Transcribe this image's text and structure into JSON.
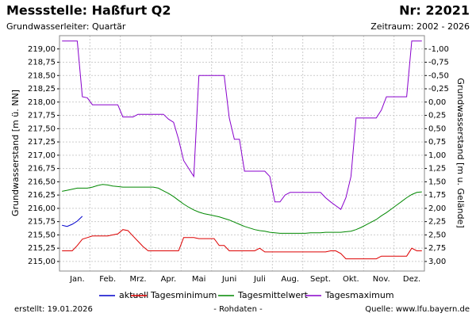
{
  "chart_data": {
    "type": "line",
    "title": "Messstelle: Haßfurt Q2",
    "number": "Nr: 22021",
    "subtitle": "Grundwasserleiter: Quartär",
    "period": "Zeitraum: 2002 - 2026",
    "ylabel": "Grundwasserstand [m ü. NN]",
    "y2label": "Grundwasserstand [m u. Gelände]",
    "footer_left": "erstellt:  19.01.2026",
    "footer_center": "- Rohdaten -",
    "footer_right": "Quelle: www.lfu.bayern.de",
    "grid": true,
    "categories": [
      null,
      null,
      null,
      "Jan.",
      null,
      null,
      null,
      null,
      null,
      "Feb.",
      null,
      null,
      null,
      null,
      null,
      "Mrz.",
      null,
      null,
      null,
      null,
      null,
      "Apr.",
      null,
      null,
      null,
      null,
      null,
      "Mai",
      null,
      null,
      null,
      null,
      null,
      "Juni",
      null,
      null,
      null,
      null,
      null,
      "Juli",
      null,
      null,
      null,
      null,
      null,
      "Aug.",
      null,
      null,
      null,
      null,
      null,
      "Sept.",
      null,
      null,
      null,
      null,
      null,
      "Okt.",
      null,
      null,
      null,
      null,
      null,
      "Nov.",
      null,
      null,
      null,
      null,
      null,
      "Dez.",
      null,
      null
    ],
    "ylim": [
      214.82,
      219.25
    ],
    "yticks": [
      {
        "value": 215,
        "label": "215,00"
      },
      {
        "value": 215.25,
        "label": "215,25"
      },
      {
        "value": 215.5,
        "label": "215,50"
      },
      {
        "value": 215.75,
        "label": "215,75"
      },
      {
        "value": 216,
        "label": "216,00"
      },
      {
        "value": 216.25,
        "label": "216,25"
      },
      {
        "value": 216.5,
        "label": "216,50"
      },
      {
        "value": 216.75,
        "label": "216,75"
      },
      {
        "value": 217,
        "label": "217,00"
      },
      {
        "value": 217.25,
        "label": "217,25"
      },
      {
        "value": 217.5,
        "label": "217,50"
      },
      {
        "value": 217.75,
        "label": "217,75"
      },
      {
        "value": 218,
        "label": "218,00"
      },
      {
        "value": 218.25,
        "label": "218,25"
      },
      {
        "value": 218.5,
        "label": "218,50"
      },
      {
        "value": 218.75,
        "label": "218,75"
      },
      {
        "value": 219,
        "label": "219,00"
      }
    ],
    "y2lim": [
      3.18,
      -1.25
    ],
    "y2ticks": [
      {
        "value": -1,
        "label": "-1,00"
      },
      {
        "value": -0.75,
        "label": "-0,75"
      },
      {
        "value": -0.5,
        "label": "-0,50"
      },
      {
        "value": -0.25,
        "label": "-0,25"
      },
      {
        "value": 0,
        "label": "0,00"
      },
      {
        "value": 0.25,
        "label": "0,25"
      },
      {
        "value": 0.5,
        "label": "0,50"
      },
      {
        "value": 0.75,
        "label": "0,75"
      },
      {
        "value": 1,
        "label": "1,00"
      },
      {
        "value": 1.25,
        "label": "1,25"
      },
      {
        "value": 1.5,
        "label": "1,50"
      },
      {
        "value": 1.75,
        "label": "1,75"
      },
      {
        "value": 2,
        "label": "2,00"
      },
      {
        "value": 2.25,
        "label": "2,25"
      },
      {
        "value": 2.5,
        "label": "2,50"
      },
      {
        "value": 2.75,
        "label": "2,75"
      },
      {
        "value": 3,
        "label": "3,00"
      }
    ],
    "series": [
      {
        "name": "aktuell",
        "color": "#0000cc",
        "values": [
          215.68,
          215.66,
          215.7,
          215.76,
          215.85,
          null,
          null,
          null,
          null,
          null,
          null,
          null,
          null,
          null,
          null,
          null,
          null,
          null,
          null,
          null,
          null,
          null,
          null,
          null,
          null,
          null,
          null,
          null,
          null,
          null,
          null,
          null,
          null,
          null,
          null,
          null,
          null,
          null,
          null,
          null,
          null,
          null,
          null,
          null,
          null,
          null,
          null,
          null,
          null,
          null,
          null,
          null,
          null,
          null,
          null,
          null,
          null,
          null,
          null,
          null,
          null,
          null,
          null,
          null,
          null,
          null,
          null,
          null,
          null,
          null,
          null,
          null
        ]
      },
      {
        "name": "Tagesminimum",
        "color": "#dd0000",
        "values": [
          215.2,
          215.2,
          215.2,
          215.3,
          215.42,
          215.45,
          215.48,
          215.48,
          215.48,
          215.48,
          215.5,
          215.52,
          215.6,
          215.58,
          215.48,
          215.38,
          215.28,
          215.2,
          215.2,
          215.2,
          215.2,
          215.2,
          215.2,
          215.2,
          215.45,
          215.45,
          215.45,
          215.43,
          215.43,
          215.43,
          215.43,
          215.3,
          215.3,
          215.2,
          215.2,
          215.2,
          215.2,
          215.2,
          215.2,
          215.25,
          215.18,
          215.18,
          215.18,
          215.18,
          215.18,
          215.18,
          215.18,
          215.18,
          215.18,
          215.18,
          215.18,
          215.18,
          215.18,
          215.2,
          215.2,
          215.15,
          215.05,
          215.05,
          215.05,
          215.05,
          215.05,
          215.05,
          215.05,
          215.1,
          215.1,
          215.1,
          215.1,
          215.1,
          215.1,
          215.25,
          215.2,
          215.2
        ]
      },
      {
        "name": "Tagesmittelwert",
        "color": "#008800",
        "values": [
          216.32,
          216.34,
          216.36,
          216.38,
          216.38,
          216.38,
          216.4,
          216.43,
          216.45,
          216.44,
          216.42,
          216.41,
          216.4,
          216.4,
          216.4,
          216.4,
          216.4,
          216.4,
          216.4,
          216.38,
          216.33,
          216.28,
          216.22,
          216.15,
          216.08,
          216.02,
          215.97,
          215.93,
          215.9,
          215.88,
          215.86,
          215.84,
          215.81,
          215.78,
          215.74,
          215.7,
          215.66,
          215.63,
          215.6,
          215.58,
          215.57,
          215.55,
          215.54,
          215.53,
          215.53,
          215.53,
          215.53,
          215.53,
          215.53,
          215.54,
          215.54,
          215.54,
          215.55,
          215.55,
          215.55,
          215.55,
          215.56,
          215.57,
          215.6,
          215.64,
          215.69,
          215.74,
          215.79,
          215.86,
          215.92,
          215.99,
          216.06,
          216.13,
          216.2,
          216.26,
          216.3,
          216.31
        ]
      },
      {
        "name": "Tagesmaximum",
        "color": "#8800cc",
        "values": [
          219.15,
          219.15,
          219.15,
          219.15,
          218.1,
          218.08,
          217.95,
          217.95,
          217.95,
          217.95,
          217.95,
          217.95,
          217.72,
          217.72,
          217.72,
          217.77,
          217.77,
          217.77,
          217.77,
          217.77,
          217.77,
          217.68,
          217.62,
          217.3,
          216.9,
          216.75,
          216.6,
          218.5,
          218.5,
          218.5,
          218.5,
          218.5,
          218.5,
          217.7,
          217.3,
          217.3,
          216.7,
          216.7,
          216.7,
          216.7,
          216.7,
          216.6,
          216.12,
          216.12,
          216.25,
          216.3,
          216.3,
          216.3,
          216.3,
          216.3,
          216.3,
          216.3,
          216.2,
          216.12,
          216.05,
          215.98,
          216.2,
          216.6,
          217.7,
          217.7,
          217.7,
          217.7,
          217.7,
          217.85,
          218.1,
          218.1,
          218.1,
          218.1,
          218.1,
          219.15,
          219.15,
          219.15
        ]
      }
    ]
  }
}
